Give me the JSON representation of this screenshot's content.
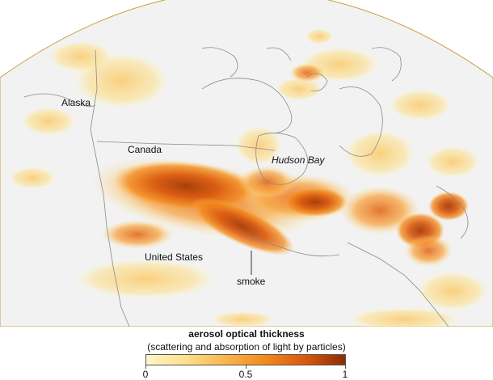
{
  "map": {
    "labels": {
      "alaska": "Alaska",
      "canada": "Canada",
      "hudson_bay": "Hudson Bay",
      "united_states": "United States",
      "smoke": "smoke"
    },
    "colors": {
      "land_background": "#f2f2f2",
      "ocean": "#ffffff",
      "coastline": "#888888",
      "aerosol_low": "#fff6c8",
      "aerosol_mid": "#f28a1c",
      "aerosol_high": "#8a2e06"
    }
  },
  "legend": {
    "title": "aerosol optical thickness",
    "subtitle": "(scattering and absorption of light by particles)",
    "ticks": [
      "0",
      "0.5",
      "1"
    ],
    "range": [
      0,
      1
    ]
  }
}
